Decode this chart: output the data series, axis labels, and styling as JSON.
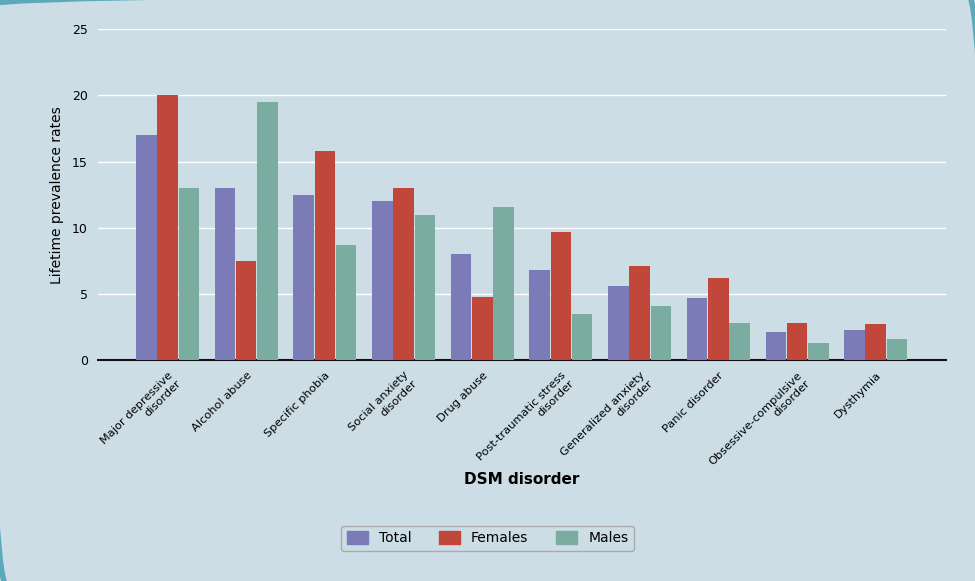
{
  "categories": [
    "Major depressive\ndisorder",
    "Alcohol abuse",
    "Specific phobia",
    "Social anxiety\ndisorder",
    "Drug abuse",
    "Post-traumatic stress\ndisorder",
    "Generalized anxiety\ndisorder",
    "Panic disorder",
    "Obsessive-compulsive\ndisorder",
    "Dysthymia"
  ],
  "total": [
    17,
    13,
    12.5,
    12,
    8,
    6.8,
    5.6,
    4.7,
    2.1,
    2.3
  ],
  "females": [
    20,
    7.5,
    15.8,
    13,
    4.8,
    9.7,
    7.1,
    6.2,
    2.8,
    2.7
  ],
  "males": [
    13,
    19.5,
    8.7,
    11,
    11.6,
    3.5,
    4.1,
    2.8,
    1.3,
    1.6
  ],
  "total_color": "#7b7bb8",
  "females_color": "#c0473a",
  "males_color": "#7aada0",
  "xlabel": "DSM disorder",
  "ylabel": "Lifetime prevalence rates",
  "ylim": [
    0,
    25
  ],
  "yticks": [
    0,
    5,
    10,
    15,
    20,
    25
  ],
  "bg_color": "#cddde6",
  "grid_color": "#ffffff",
  "legend_labels": [
    "Total",
    "Females",
    "Males"
  ]
}
